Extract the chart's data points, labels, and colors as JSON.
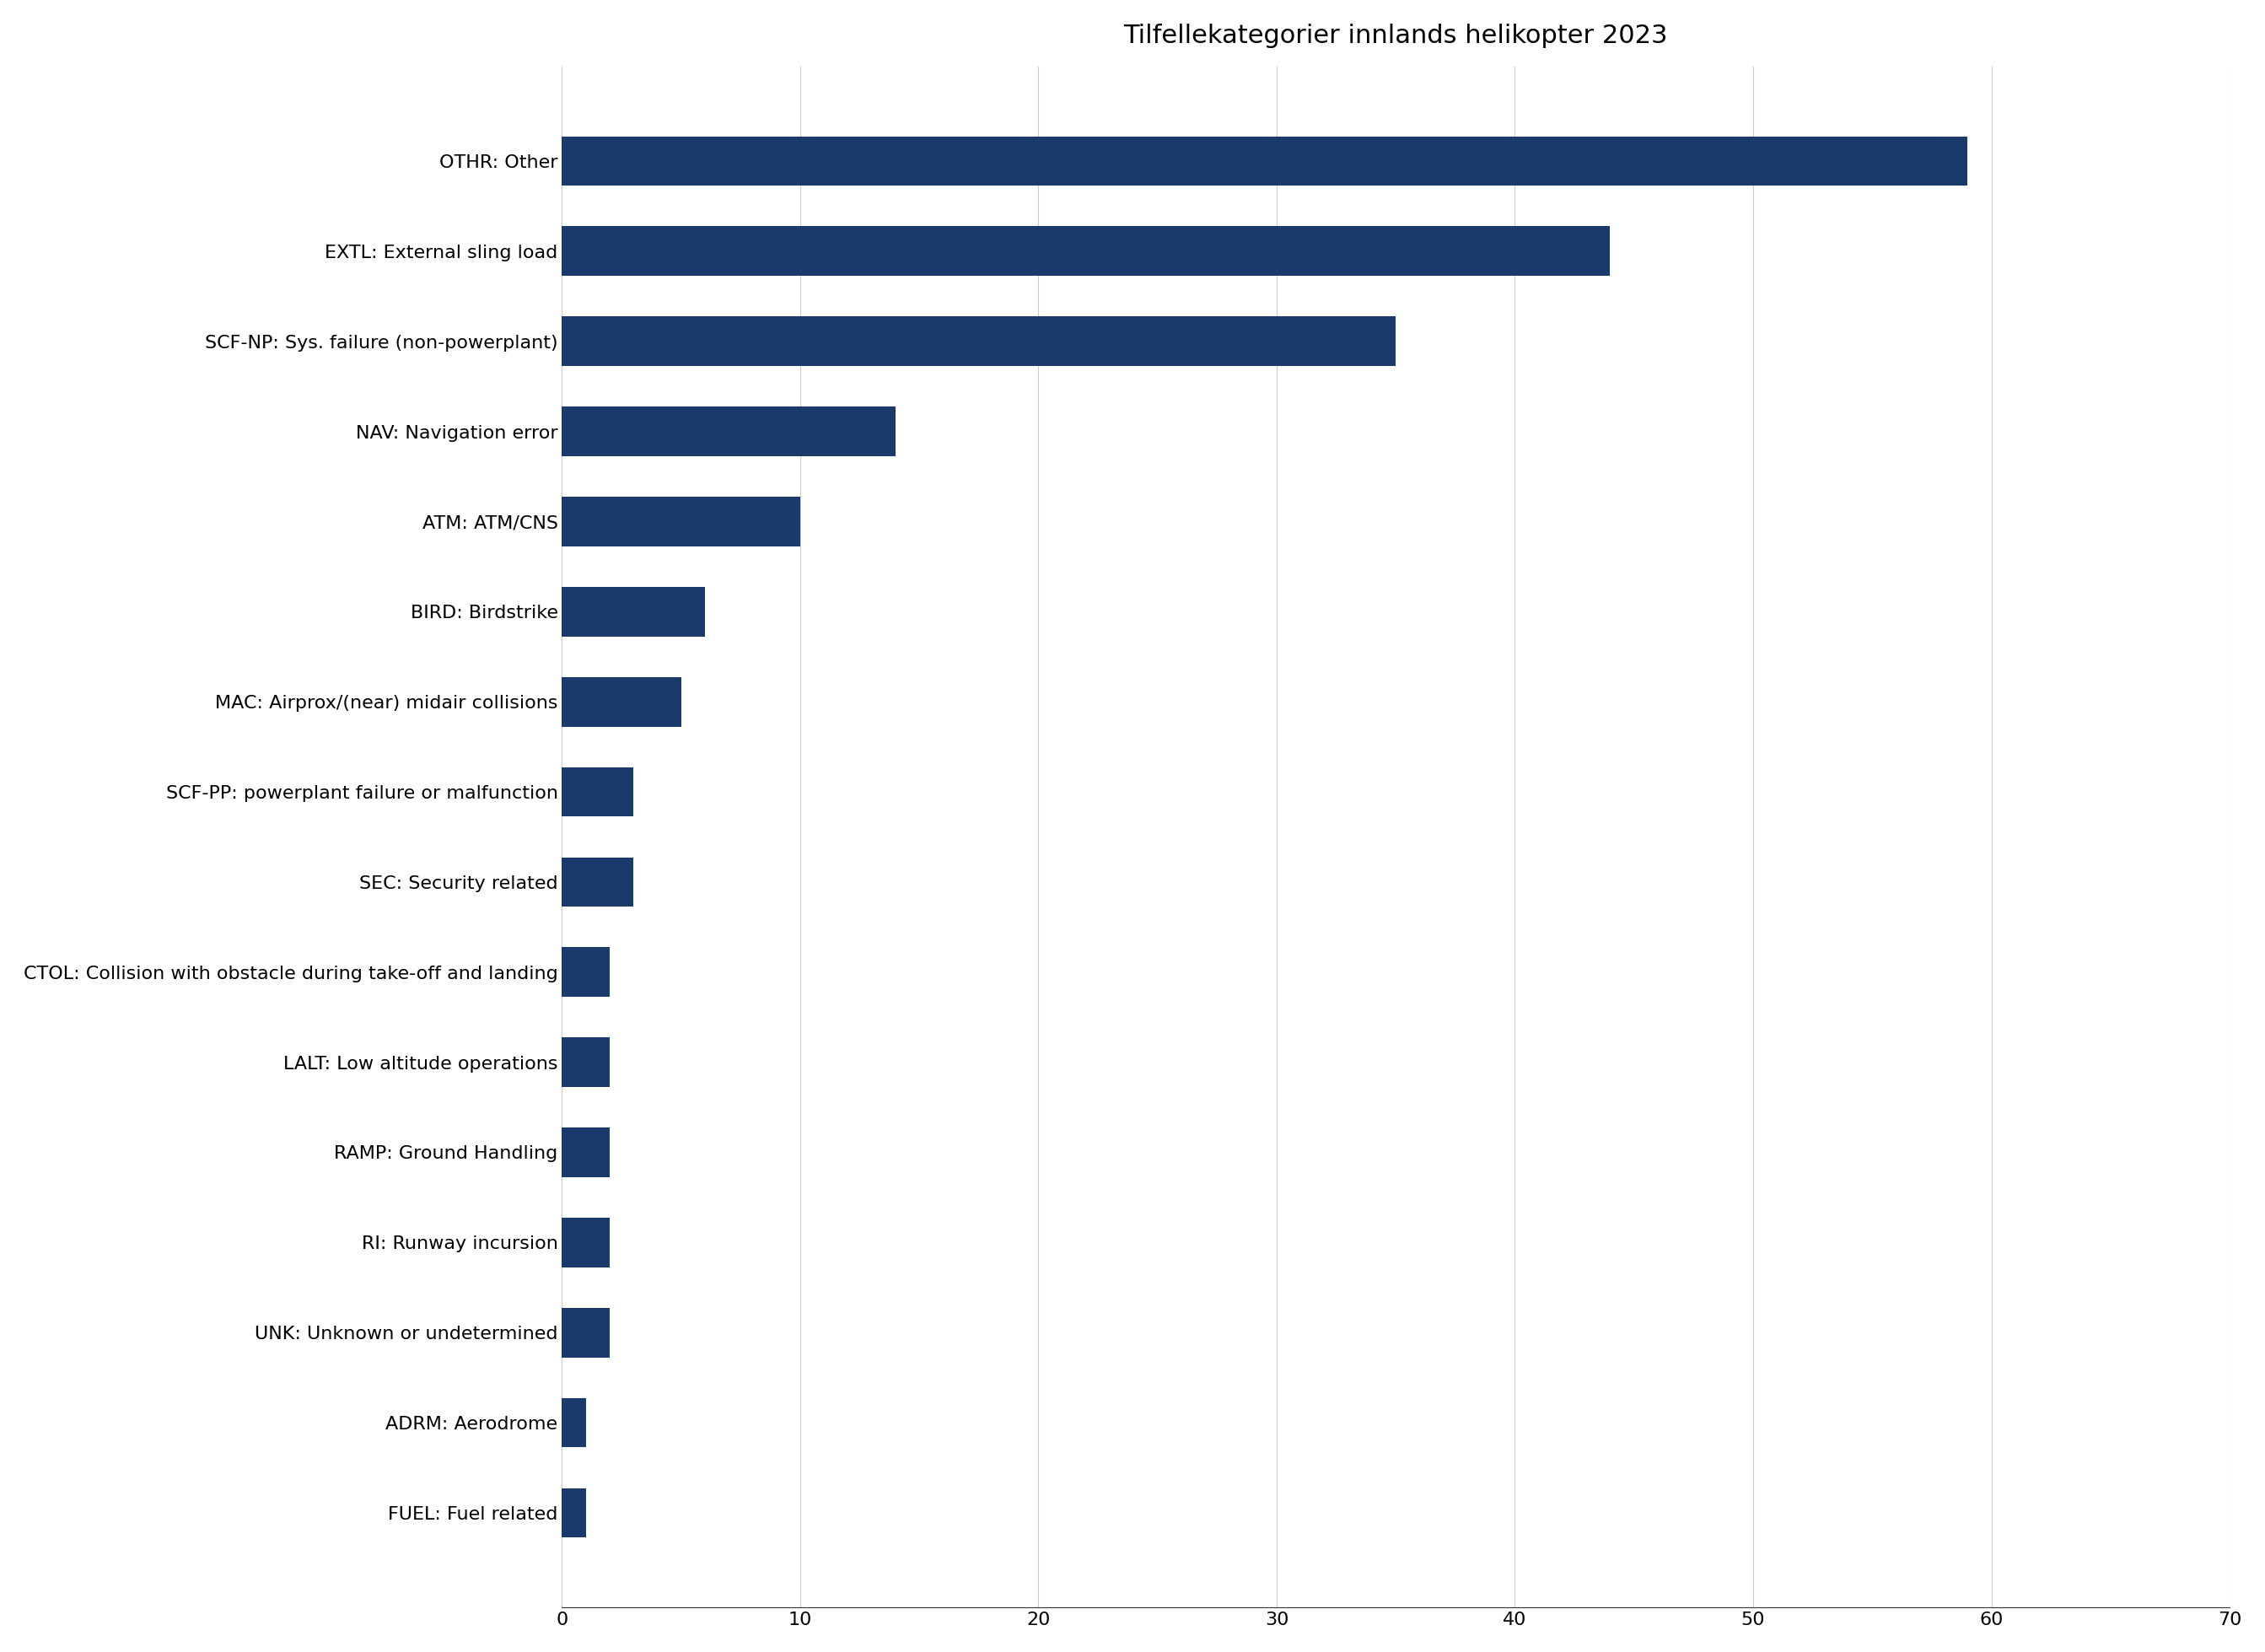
{
  "title": "Tilfellekategorier innlands helikopter 2023",
  "categories": [
    "OTHR: Other",
    "EXTL: External sling load",
    "SCF-NP: Sys. failure (non-powerplant)",
    "NAV: Navigation error",
    "ATM: ATM/CNS",
    "BIRD: Birdstrike",
    "MAC: Airprox/(near) midair collisions",
    "SCF-PP: powerplant failure or malfunction",
    "SEC: Security related",
    "CTOL: Collision with obstacle during take-off and landing",
    "LALT: Low altitude operations",
    "RAMP: Ground Handling",
    "RI: Runway incursion",
    "UNK: Unknown or undetermined",
    "ADRM: Aerodrome",
    "FUEL: Fuel related"
  ],
  "values": [
    59,
    44,
    35,
    14,
    10,
    6,
    5,
    3,
    3,
    2,
    2,
    2,
    2,
    2,
    1,
    1
  ],
  "bar_color": "#1a3a6b",
  "xlim": [
    0,
    70
  ],
  "xticks": [
    0,
    10,
    20,
    30,
    40,
    50,
    60,
    70
  ],
  "title_fontsize": 22,
  "label_fontsize": 16,
  "tick_fontsize": 16,
  "background_color": "#ffffff",
  "grid_color": "#cccccc"
}
